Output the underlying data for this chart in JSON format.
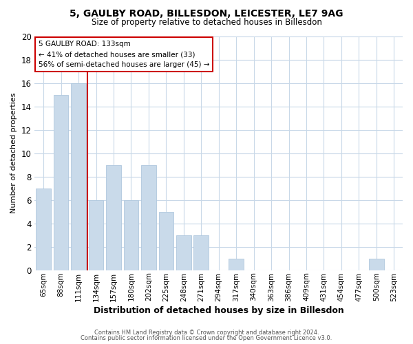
{
  "title1": "5, GAULBY ROAD, BILLESDON, LEICESTER, LE7 9AG",
  "title2": "Size of property relative to detached houses in Billesdon",
  "xlabel": "Distribution of detached houses by size in Billesdon",
  "ylabel": "Number of detached properties",
  "bar_labels": [
    "65sqm",
    "88sqm",
    "111sqm",
    "134sqm",
    "157sqm",
    "180sqm",
    "202sqm",
    "225sqm",
    "248sqm",
    "271sqm",
    "294sqm",
    "317sqm",
    "340sqm",
    "363sqm",
    "386sqm",
    "409sqm",
    "431sqm",
    "454sqm",
    "477sqm",
    "500sqm",
    "523sqm"
  ],
  "bar_values": [
    7,
    15,
    16,
    6,
    9,
    6,
    9,
    5,
    3,
    3,
    0,
    1,
    0,
    0,
    0,
    0,
    0,
    0,
    0,
    1,
    0
  ],
  "bar_color": "#c9daea",
  "bar_edge_color": "#b0c8de",
  "grid_color": "#c8d8e8",
  "background_color": "#ffffff",
  "vline_color": "#cc0000",
  "annotation_text1": "5 GAULBY ROAD: 133sqm",
  "annotation_text2": "← 41% of detached houses are smaller (33)",
  "annotation_text3": "56% of semi-detached houses are larger (45) →",
  "annotation_box_color": "#ffffff",
  "annotation_box_edge": "#cc0000",
  "ylim": [
    0,
    20
  ],
  "yticks": [
    0,
    2,
    4,
    6,
    8,
    10,
    12,
    14,
    16,
    18,
    20
  ],
  "footer1": "Contains HM Land Registry data © Crown copyright and database right 2024.",
  "footer2": "Contains public sector information licensed under the Open Government Licence v3.0."
}
